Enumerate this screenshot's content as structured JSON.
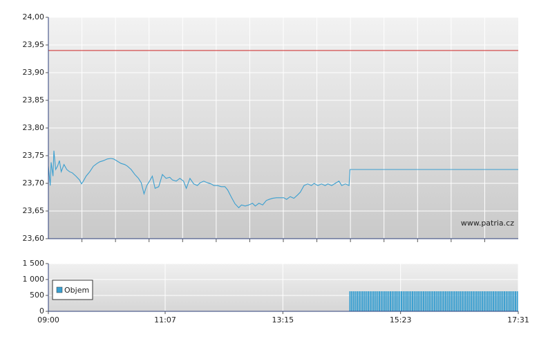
{
  "chart_data": [
    {
      "type": "line",
      "annotation": "www.patria.cz",
      "x": [
        540,
        542,
        543,
        545,
        546,
        548,
        550,
        552,
        554,
        557,
        560,
        563,
        566,
        570,
        574,
        576,
        578,
        581,
        585,
        589,
        593,
        596,
        600,
        604,
        608,
        611,
        615,
        619,
        623,
        626,
        630,
        634,
        638,
        641,
        644,
        647,
        650,
        653,
        656,
        660,
        664,
        668,
        672,
        675,
        679,
        683,
        687,
        690,
        694,
        698,
        702,
        705,
        709,
        713,
        717,
        720,
        724,
        728,
        732,
        735,
        739,
        743,
        747,
        750,
        754,
        758,
        762,
        765,
        769,
        773,
        777,
        780,
        784,
        788,
        792,
        796,
        799,
        803,
        807,
        811,
        814,
        818,
        822,
        826,
        829,
        833,
        837,
        841,
        844,
        848,
        852,
        856,
        859,
        863,
        867,
        868,
        1051
      ],
      "values": [
        23.731,
        23.696,
        23.738,
        23.713,
        23.759,
        23.725,
        23.731,
        23.741,
        23.721,
        23.734,
        23.725,
        23.721,
        23.719,
        23.713,
        23.706,
        23.699,
        23.704,
        23.713,
        23.721,
        23.731,
        23.736,
        23.739,
        23.741,
        23.744,
        23.745,
        23.744,
        23.74,
        23.736,
        23.734,
        23.731,
        23.725,
        23.716,
        23.709,
        23.701,
        23.681,
        23.696,
        23.704,
        23.713,
        23.691,
        23.694,
        23.716,
        23.709,
        23.711,
        23.706,
        23.704,
        23.709,
        23.704,
        23.691,
        23.709,
        23.699,
        23.696,
        23.701,
        23.704,
        23.701,
        23.699,
        23.696,
        23.696,
        23.694,
        23.694,
        23.688,
        23.675,
        23.663,
        23.656,
        23.661,
        23.659,
        23.661,
        23.664,
        23.659,
        23.664,
        23.661,
        23.669,
        23.671,
        23.673,
        23.674,
        23.674,
        23.674,
        23.671,
        23.676,
        23.673,
        23.679,
        23.684,
        23.696,
        23.699,
        23.696,
        23.7,
        23.696,
        23.699,
        23.696,
        23.699,
        23.696,
        23.7,
        23.704,
        23.696,
        23.699,
        23.696,
        23.725,
        23.725
      ],
      "color": "#3a9fd0",
      "reference_line": {
        "value": 23.94,
        "color": "#cc2222"
      },
      "xlim": [
        540,
        1051
      ],
      "ylim": [
        23.6,
        24.0
      ],
      "yticks": [
        {
          "value": 23.6,
          "label": "23,60"
        },
        {
          "value": 23.65,
          "label": "23,65"
        },
        {
          "value": 23.7,
          "label": "23,70"
        },
        {
          "value": 23.75,
          "label": "23,75"
        },
        {
          "value": 23.8,
          "label": "23,80"
        },
        {
          "value": 23.85,
          "label": "23,85"
        },
        {
          "value": 23.9,
          "label": "23,90"
        },
        {
          "value": 23.95,
          "label": "23,95"
        },
        {
          "value": 24.0,
          "label": "24,00"
        }
      ],
      "grid": true
    },
    {
      "type": "bar",
      "series": [
        {
          "name": "Objem",
          "color": "#3a9fd0",
          "x": [
            868,
            870,
            872,
            874,
            876,
            878,
            880,
            882,
            884,
            886,
            888,
            890,
            892,
            894,
            896,
            898,
            900,
            902,
            904,
            906,
            908,
            910,
            912,
            914,
            916,
            918,
            920,
            922,
            924,
            926,
            928,
            930,
            932,
            934,
            936,
            938,
            940,
            942,
            944,
            946,
            948,
            950,
            952,
            954,
            956,
            958,
            960,
            962,
            964,
            966,
            968,
            970,
            972,
            974,
            976,
            978,
            980,
            982,
            984,
            986,
            988,
            990,
            992,
            994,
            996,
            998,
            1000,
            1002,
            1004,
            1006,
            1008,
            1010,
            1012,
            1014,
            1016,
            1018,
            1020,
            1022,
            1024,
            1026,
            1028,
            1030,
            1032,
            1034,
            1036,
            1038,
            1040,
            1042,
            1044,
            1046,
            1048,
            1050
          ],
          "values": [
            630,
            630,
            630,
            630,
            630,
            630,
            630,
            630,
            630,
            630,
            630,
            630,
            630,
            630,
            630,
            630,
            630,
            630,
            630,
            630,
            630,
            630,
            630,
            630,
            630,
            630,
            630,
            630,
            630,
            630,
            630,
            630,
            630,
            630,
            630,
            630,
            630,
            630,
            630,
            630,
            630,
            630,
            630,
            630,
            630,
            630,
            630,
            630,
            630,
            630,
            630,
            630,
            630,
            630,
            630,
            630,
            630,
            630,
            630,
            630,
            630,
            630,
            630,
            630,
            630,
            630,
            630,
            630,
            630,
            630,
            630,
            630,
            630,
            630,
            630,
            630,
            630,
            630,
            630,
            630,
            630,
            630,
            630,
            630,
            630,
            630,
            630,
            630,
            630,
            630,
            630,
            630
          ]
        }
      ],
      "xlim": [
        540,
        1051
      ],
      "xticks": [
        {
          "value": 540,
          "label": "09:00"
        },
        {
          "value": 667,
          "label": "11:07"
        },
        {
          "value": 795,
          "label": "13:15"
        },
        {
          "value": 923,
          "label": "15:23"
        },
        {
          "value": 1051,
          "label": "17:31"
        }
      ],
      "ylim": [
        0,
        1500
      ],
      "yticks": [
        0,
        500,
        {
          "value": 1000,
          "label": "1 000"
        },
        {
          "value": 1500,
          "label": "1 500"
        }
      ],
      "legend": "upper left",
      "grid": true
    }
  ]
}
